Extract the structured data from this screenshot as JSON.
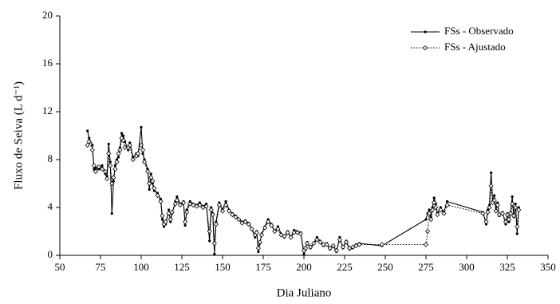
{
  "chart_data": {
    "type": "line",
    "x_label": "Dia Juliano",
    "y_label": "Fluxo de Seiva (L d⁻¹)",
    "x": [
      67,
      68,
      70,
      71,
      72,
      74,
      76,
      78,
      79,
      80,
      81,
      82,
      83,
      84,
      85,
      86,
      87,
      88,
      89,
      90,
      92,
      93,
      95,
      97,
      98,
      100,
      101,
      102,
      104,
      105,
      106,
      107,
      108,
      110,
      112,
      113,
      114,
      115,
      117,
      118,
      119,
      121,
      122,
      124,
      126,
      127,
      128,
      130,
      132,
      134,
      136,
      138,
      140,
      142,
      143,
      144,
      145,
      146,
      148,
      150,
      152,
      154,
      156,
      158,
      160,
      162,
      164,
      166,
      168,
      170,
      171,
      172,
      173,
      174,
      176,
      178,
      180,
      182,
      184,
      186,
      188,
      190,
      192,
      194,
      196,
      198,
      200,
      201,
      202,
      204,
      206,
      208,
      210,
      212,
      214,
      216,
      218,
      220,
      222,
      224,
      226,
      228,
      230,
      232,
      234,
      248,
      275,
      276,
      277,
      278,
      279,
      280,
      281,
      282,
      284,
      286,
      288,
      310,
      312,
      313,
      314,
      315,
      316,
      317,
      318,
      319,
      320,
      322,
      324,
      325,
      326,
      327,
      328,
      329,
      330,
      331,
      332
    ],
    "series": [
      {
        "name": "FSs - Observado",
        "color": "#000000",
        "line_style": "solid",
        "marker": "filled",
        "values": [
          10.4,
          9.8,
          9.2,
          7.2,
          7.3,
          7.2,
          7.5,
          6.8,
          6.6,
          9.3,
          7.8,
          3.5,
          6.2,
          7.5,
          8.0,
          8.2,
          9.0,
          10.2,
          10.0,
          9.5,
          8.8,
          9.4,
          8.2,
          8.5,
          8.3,
          10.7,
          8.5,
          8.0,
          7.2,
          5.5,
          6.8,
          6.0,
          5.4,
          5.2,
          4.7,
          3.0,
          2.4,
          2.6,
          3.8,
          2.8,
          3.5,
          4.5,
          4.9,
          4.3,
          4.5,
          2.5,
          3.8,
          4.5,
          4.3,
          4.2,
          4.4,
          4.1,
          4.3,
          1.2,
          4.0,
          3.5,
          0.1,
          2.8,
          4.4,
          3.8,
          4.5,
          3.8,
          3.5,
          3.3,
          3.0,
          2.8,
          2.9,
          2.7,
          2.2,
          1.5,
          2.0,
          0.3,
          1.0,
          1.8,
          2.4,
          3.0,
          2.6,
          2.0,
          2.4,
          1.8,
          1.5,
          2.0,
          1.5,
          2.1,
          2.0,
          1.9,
          0.1,
          0.5,
          1.1,
          0.6,
          1.0,
          1.5,
          1.2,
          0.8,
          1.0,
          0.5,
          0.8,
          0.3,
          1.5,
          0.6,
          1.2,
          0.5,
          0.6,
          0.9,
          1.0,
          0.8,
          3.0,
          3.5,
          3.8,
          3.2,
          4.0,
          4.8,
          4.3,
          3.5,
          4.0,
          3.6,
          4.5,
          3.6,
          2.6,
          3.8,
          4.2,
          6.9,
          4.5,
          5.0,
          3.8,
          4.4,
          3.3,
          3.6,
          2.6,
          3.5,
          2.8,
          3.6,
          4.9,
          3.2,
          4.3,
          1.8,
          4.0
        ]
      },
      {
        "name": "FSs - Ajustado",
        "color": "#000000",
        "line_style": "dotted",
        "marker": "open",
        "values": [
          9.2,
          9.5,
          8.8,
          7.5,
          7.0,
          7.4,
          7.2,
          7.0,
          6.4,
          8.5,
          7.5,
          6.0,
          6.5,
          7.2,
          7.8,
          8.5,
          8.8,
          9.8,
          9.6,
          9.0,
          9.0,
          9.2,
          8.0,
          8.3,
          8.5,
          9.2,
          8.8,
          7.8,
          7.0,
          6.0,
          6.5,
          6.2,
          5.6,
          5.0,
          4.5,
          3.3,
          2.6,
          2.8,
          3.5,
          3.0,
          3.6,
          4.3,
          4.6,
          4.2,
          4.4,
          2.8,
          3.6,
          4.3,
          4.2,
          4.1,
          4.2,
          4.0,
          4.1,
          2.0,
          3.8,
          3.4,
          1.0,
          2.6,
          4.2,
          3.7,
          4.2,
          3.7,
          3.4,
          3.2,
          3.0,
          2.7,
          2.8,
          2.6,
          2.2,
          1.7,
          1.9,
          0.6,
          1.1,
          1.7,
          2.3,
          2.8,
          2.5,
          2.0,
          2.2,
          1.7,
          1.6,
          1.9,
          1.5,
          1.9,
          1.9,
          1.8,
          0.4,
          0.6,
          1.0,
          0.7,
          1.0,
          1.3,
          1.1,
          0.9,
          0.9,
          0.6,
          0.8,
          0.4,
          1.3,
          0.7,
          1.1,
          0.6,
          0.7,
          0.8,
          0.9,
          0.9,
          0.9,
          2.0,
          3.5,
          3.0,
          3.8,
          4.4,
          4.0,
          3.4,
          3.8,
          3.5,
          4.2,
          3.5,
          2.8,
          3.6,
          4.0,
          5.8,
          4.4,
          4.6,
          3.7,
          4.2,
          3.4,
          3.5,
          2.8,
          3.4,
          3.0,
          3.5,
          4.3,
          3.3,
          4.0,
          2.4,
          3.8
        ]
      }
    ],
    "xlim": [
      50,
      350
    ],
    "xticks": [
      50,
      75,
      100,
      125,
      150,
      175,
      200,
      225,
      250,
      275,
      300,
      325,
      350
    ],
    "ylim": [
      0,
      20
    ],
    "yticks": [
      0,
      4,
      8,
      12,
      16,
      20
    ],
    "grid": false,
    "legend": "upper right"
  }
}
